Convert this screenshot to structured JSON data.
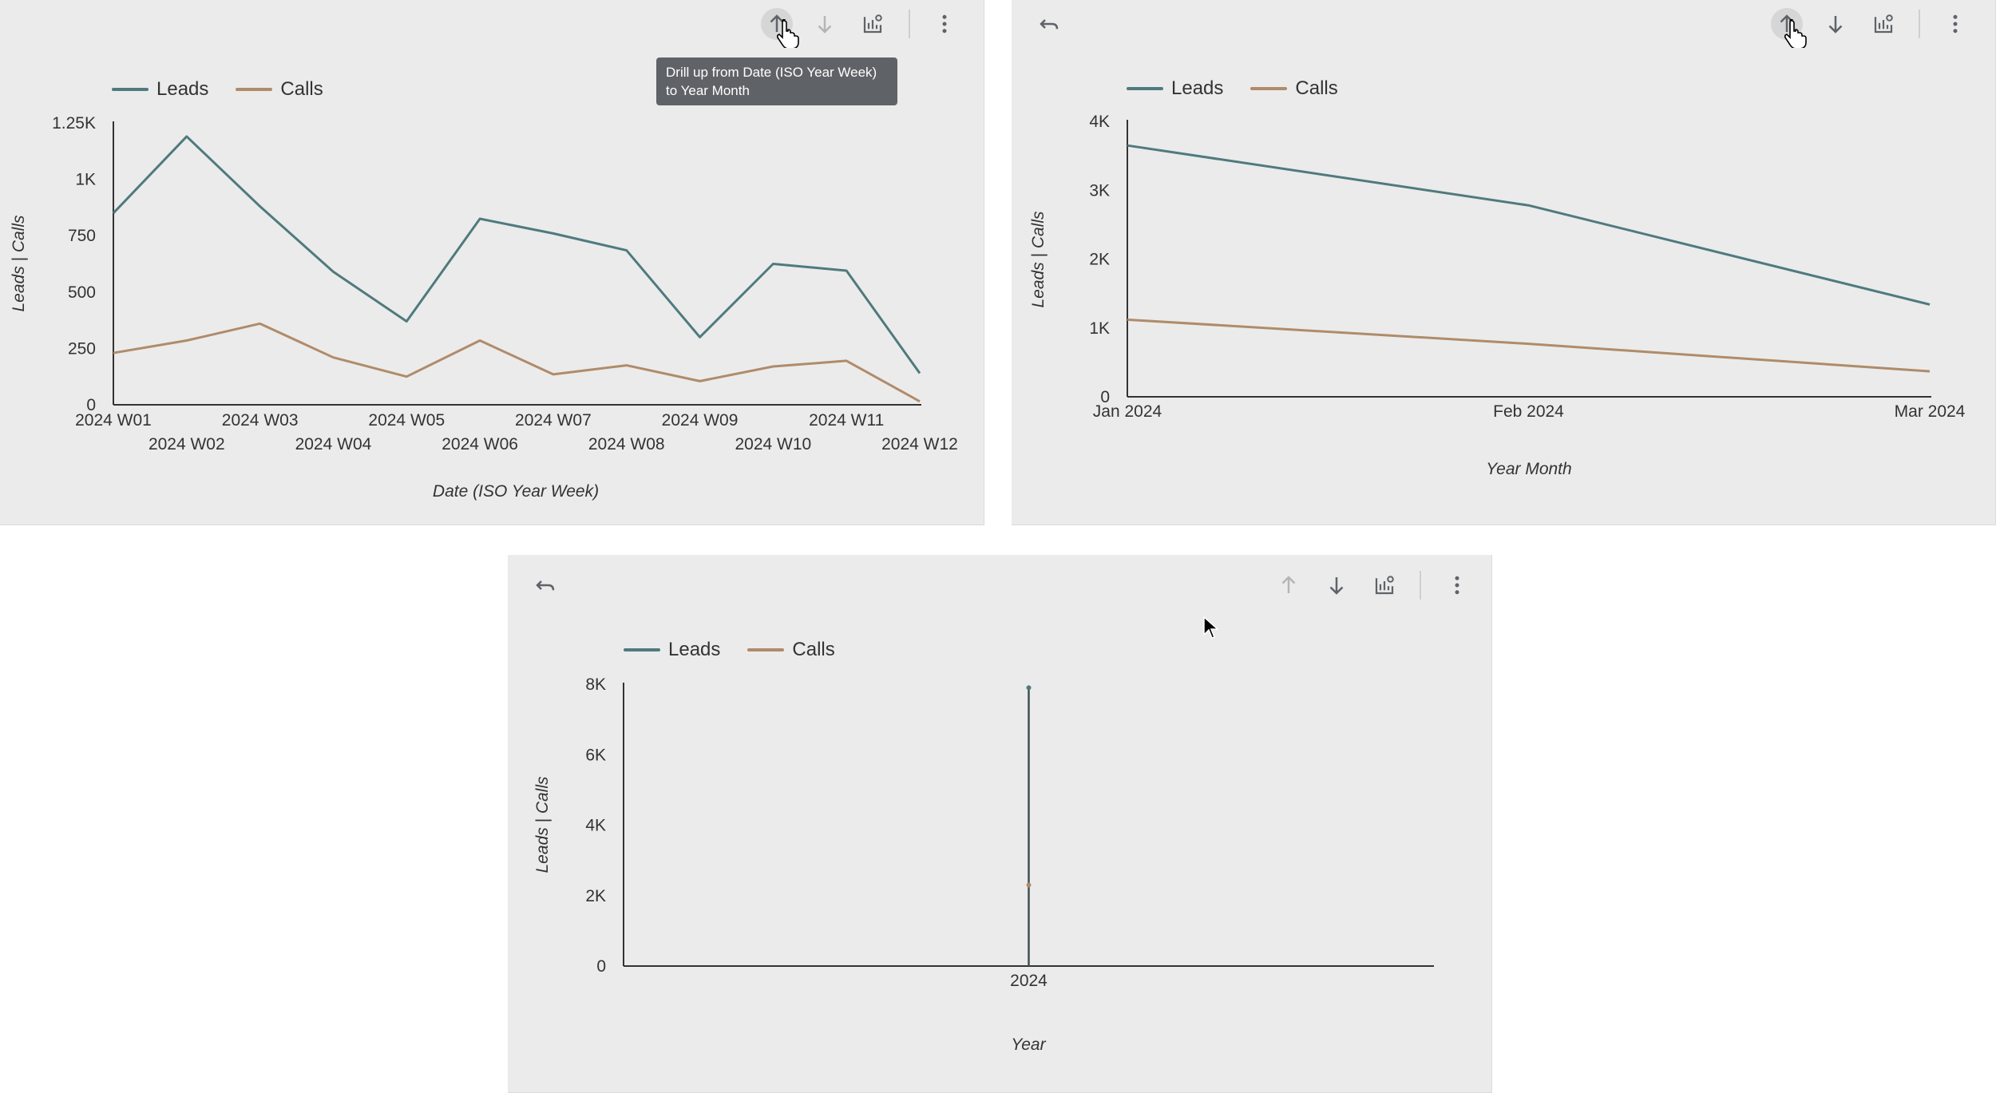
{
  "colors": {
    "leads": "#4f7a7e",
    "calls": "#b08b6a",
    "axis": "#333333",
    "panel": "#ebebeb"
  },
  "icons": {
    "drill_up": "arrow-up-icon",
    "drill_down": "arrow-down-icon",
    "chart_settings": "chart-settings-icon",
    "more": "more-vert-icon",
    "undo": "undo-icon"
  },
  "tooltip": {
    "text": "Drill up from Date (ISO Year Week) to Year Month"
  },
  "panels": [
    {
      "legend": {
        "leads": "Leads",
        "calls": "Calls"
      }
    },
    {
      "legend": {
        "leads": "Leads",
        "calls": "Calls"
      }
    },
    {
      "legend": {
        "leads": "Leads",
        "calls": "Calls"
      }
    }
  ],
  "chart_data": [
    {
      "type": "line",
      "x": [
        "2024 W01",
        "2024 W02",
        "2024 W03",
        "2024 W04",
        "2024 W05",
        "2024 W06",
        "2024 W07",
        "2024 W08",
        "2024 W09",
        "2024 W10",
        "2024 W11",
        "2024 W12"
      ],
      "series": [
        {
          "name": "Leads",
          "values": [
            850,
            1190,
            880,
            590,
            370,
            825,
            760,
            685,
            300,
            625,
            595,
            140
          ]
        },
        {
          "name": "Calls",
          "values": [
            230,
            285,
            360,
            210,
            125,
            285,
            135,
            175,
            105,
            170,
            195,
            15
          ]
        }
      ],
      "yticks": [
        0,
        250,
        500,
        750,
        1000,
        1250
      ],
      "ytick_labels": [
        "0",
        "250",
        "500",
        "750",
        "1K",
        "1.25K"
      ],
      "ylim": [
        0,
        1250
      ],
      "xlabel": "Date (ISO Year Week)",
      "ylabel": "Leads | Calls",
      "legend": "top-left"
    },
    {
      "type": "line",
      "x": [
        "Jan 2024",
        "Feb 2024",
        "Mar 2024"
      ],
      "series": [
        {
          "name": "Leads",
          "values": [
            3650,
            2780,
            1340
          ]
        },
        {
          "name": "Calls",
          "values": [
            1120,
            770,
            370
          ]
        }
      ],
      "yticks": [
        0,
        1000,
        2000,
        3000,
        4000
      ],
      "ytick_labels": [
        "0",
        "1K",
        "2K",
        "3K",
        "4K"
      ],
      "ylim": [
        0,
        4000
      ],
      "xlabel": "Year Month",
      "ylabel": "Leads | Calls",
      "legend": "top-left"
    },
    {
      "type": "line",
      "x": [
        "2024"
      ],
      "series": [
        {
          "name": "Leads",
          "values": [
            7900
          ]
        },
        {
          "name": "Calls",
          "values": [
            2300
          ]
        }
      ],
      "yticks": [
        0,
        2000,
        4000,
        6000,
        8000
      ],
      "ytick_labels": [
        "0",
        "2K",
        "4K",
        "6K",
        "8K"
      ],
      "ylim": [
        0,
        8000
      ],
      "xlabel": "Year",
      "ylabel": "Leads | Calls",
      "legend": "top-left"
    }
  ]
}
